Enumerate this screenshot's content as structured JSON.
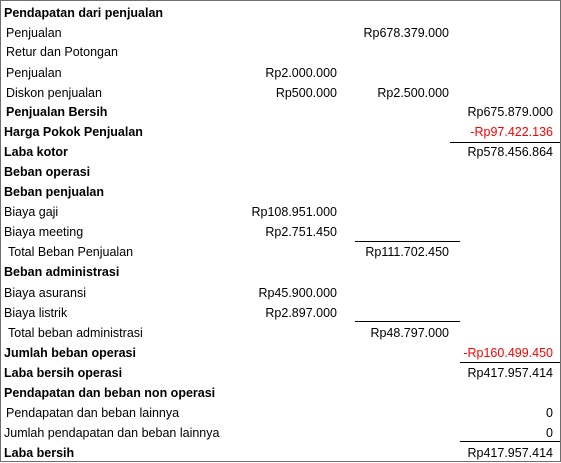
{
  "rows": [
    {
      "label": "Pendapatan dari penjualan",
      "bold": true,
      "indent": 0
    },
    {
      "label": "Penjualan",
      "indent": 1,
      "c2": "Rp678.379.000"
    },
    {
      "label": "Retur dan Potongan",
      "indent": 1
    },
    {
      "label": "Penjualan",
      "indent": 1,
      "c1": "Rp2.000.000"
    },
    {
      "label": "Diskon penjualan",
      "indent": 1,
      "c1": "Rp500.000",
      "c2": "Rp2.500.000"
    },
    {
      "label": "Penjualan Bersih",
      "bold": true,
      "indent": 1,
      "c3": "Rp675.879.000"
    },
    {
      "label": "Harga Pokok Penjualan",
      "bold": true,
      "indent": 0,
      "c3": "-Rp97.422.136",
      "c3_color": "#ff0000"
    },
    {
      "label": "Laba kotor",
      "bold": true,
      "indent": 0,
      "c3": "Rp578.456.864"
    },
    {
      "label": "Beban operasi",
      "bold": true,
      "indent": 0
    },
    {
      "label": "Beban penjualan",
      "bold": true,
      "indent": 0
    },
    {
      "label": "Biaya gaji",
      "indent": 0,
      "c1": "Rp108.951.000"
    },
    {
      "label": "Biaya meeting",
      "indent": 0,
      "c1": "Rp2.751.450"
    },
    {
      "label": "Total Beban Penjualan",
      "indent": 2,
      "c2": "Rp111.702.450"
    },
    {
      "label": "Beban administrasi",
      "bold": true,
      "indent": 0
    },
    {
      "label": "Biaya asuransi",
      "indent": 0,
      "c1": "Rp45.900.000"
    },
    {
      "label": "Biaya listrik",
      "indent": 0,
      "c1": "Rp2.897.000"
    },
    {
      "label": "Total beban administrasi",
      "indent": 2,
      "c2": "Rp48.797.000"
    },
    {
      "label": "Jumlah beban operasi",
      "bold": true,
      "indent": 0,
      "c3": "-Rp160.499.450",
      "c3_color": "#ff0000"
    },
    {
      "label": "Laba bersih operasi",
      "bold": true,
      "indent": 0,
      "c3": "Rp417.957.414"
    },
    {
      "label": "Pendapatan dan beban non operasi",
      "bold": true,
      "indent": 0
    },
    {
      "label": "Pendapatan dan beban lainnya",
      "indent": 1,
      "c3": "0"
    },
    {
      "label": "Jumlah pendapatan dan beban lainnya",
      "indent": 0,
      "c3": "0"
    },
    {
      "label": "Laba bersih",
      "bold": true,
      "indent": 0,
      "c3": "Rp417.957.414"
    }
  ]
}
